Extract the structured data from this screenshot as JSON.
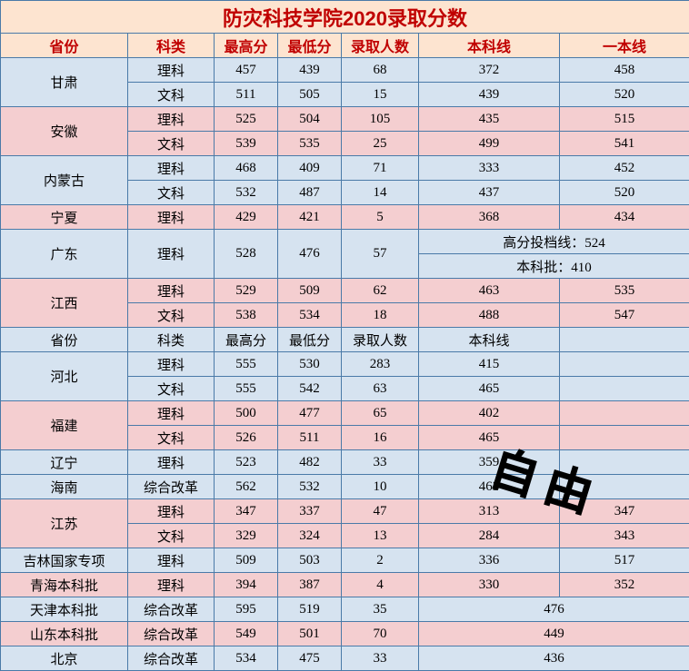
{
  "title": "防灾科技学院2020录取分数",
  "watermark": "自由",
  "headers": {
    "province": "省份",
    "subject": "科类",
    "max": "最高分",
    "min": "最低分",
    "count": "录取人数",
    "line1": "本科线",
    "line2": "一本线"
  },
  "rows": {
    "gansu": "甘肃",
    "gansu_s": "理科",
    "gansu_mx": "457",
    "gansu_mn": "439",
    "gansu_ct": "68",
    "gansu_l1": "372",
    "gansu_l2": "458",
    "gansu2_s": "文科",
    "gansu2_mx": "511",
    "gansu2_mn": "505",
    "gansu2_ct": "15",
    "gansu2_l1": "439",
    "gansu2_l2": "520",
    "anhui": "安徽",
    "anhui_s": "理科",
    "anhui_mx": "525",
    "anhui_mn": "504",
    "anhui_ct": "105",
    "anhui_l1": "435",
    "anhui_l2": "515",
    "anhui2_s": "文科",
    "anhui2_mx": "539",
    "anhui2_mn": "535",
    "anhui2_ct": "25",
    "anhui2_l1": "499",
    "anhui2_l2": "541",
    "nmg": "内蒙古",
    "nmg_s": "理科",
    "nmg_mx": "468",
    "nmg_mn": "409",
    "nmg_ct": "71",
    "nmg_l1": "333",
    "nmg_l2": "452",
    "nmg2_s": "文科",
    "nmg2_mx": "532",
    "nmg2_mn": "487",
    "nmg2_ct": "14",
    "nmg2_l1": "437",
    "nmg2_l2": "520",
    "nx": "宁夏",
    "nx_s": "理科",
    "nx_mx": "429",
    "nx_mn": "421",
    "nx_ct": "5",
    "nx_l1": "368",
    "nx_l2": "434",
    "gd": "广东",
    "gd_s": "理科",
    "gd_mx": "528",
    "gd_mn": "476",
    "gd_ct": "57",
    "gd_l1": "高分投档线：524",
    "gd_l2": "本科批：410",
    "jx": "江西",
    "jx_s": "理科",
    "jx_mx": "529",
    "jx_mn": "509",
    "jx_ct": "62",
    "jx_l1": "463",
    "jx_l2": "535",
    "jx2_s": "文科",
    "jx2_mx": "538",
    "jx2_mn": "534",
    "jx2_ct": "18",
    "jx2_l1": "488",
    "jx2_l2": "547",
    "hb": "河北",
    "hb_s": "理科",
    "hb_mx": "555",
    "hb_mn": "530",
    "hb_ct": "283",
    "hb_l1": "415",
    "hb2_s": "文科",
    "hb2_mx": "555",
    "hb2_mn": "542",
    "hb2_ct": "63",
    "hb2_l1": "465",
    "fj": "福建",
    "fj_s": "理科",
    "fj_mx": "500",
    "fj_mn": "477",
    "fj_ct": "65",
    "fj_l1": "402",
    "fj2_s": "文科",
    "fj2_mx": "526",
    "fj2_mn": "511",
    "fj2_ct": "16",
    "fj2_l1": "465",
    "ln": "辽宁",
    "ln_s": "理科",
    "ln_mx": "523",
    "ln_mn": "482",
    "ln_ct": "33",
    "ln_l1": "359",
    "hn": "海南",
    "hn_s": "综合改革",
    "hn_mx": "562",
    "hn_mn": "532",
    "hn_ct": "10",
    "hn_l1": "463",
    "js": "江苏",
    "js_s": "理科",
    "js_mx": "347",
    "js_mn": "337",
    "js_ct": "47",
    "js_l1": "313",
    "js_l2": "347",
    "js2_s": "文科",
    "js2_mx": "329",
    "js2_mn": "324",
    "js2_ct": "13",
    "js2_l1": "284",
    "js2_l2": "343",
    "jl": "吉林国家专项",
    "jl_s": "理科",
    "jl_mx": "509",
    "jl_mn": "503",
    "jl_ct": "2",
    "jl_l1": "336",
    "jl_l2": "517",
    "qh": "青海本科批",
    "qh_s": "理科",
    "qh_mx": "394",
    "qh_mn": "387",
    "qh_ct": "4",
    "qh_l1": "330",
    "qh_l2": "352",
    "tj": "天津本科批",
    "tj_s": "综合改革",
    "tj_mx": "595",
    "tj_mn": "519",
    "tj_ct": "35",
    "tj_l1": "476",
    "sd": "山东本科批",
    "sd_s": "综合改革",
    "sd_mx": "549",
    "sd_mn": "501",
    "sd_ct": "70",
    "sd_l1": "449",
    "bj": "北京",
    "bj_s": "综合改革",
    "bj_mx": "534",
    "bj_mn": "475",
    "bj_ct": "33",
    "bj_l1": "436"
  }
}
